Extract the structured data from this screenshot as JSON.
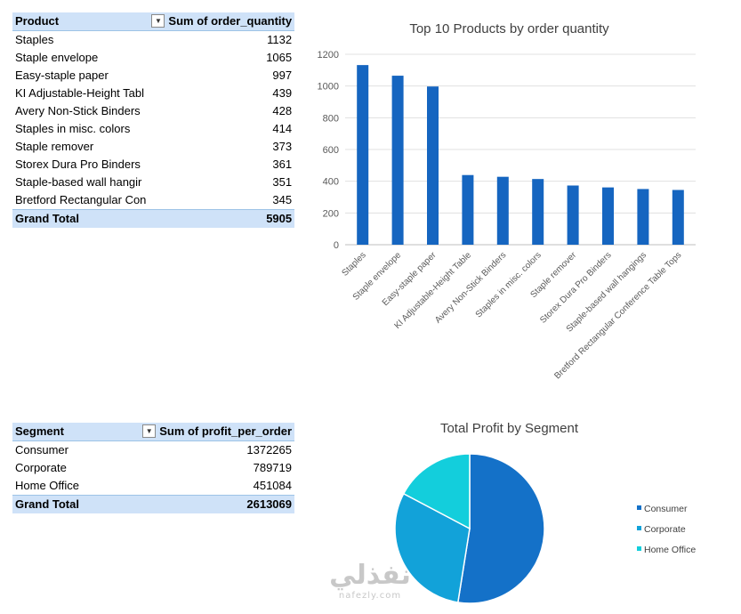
{
  "pivot_products": {
    "header_product": "Product",
    "header_value": "Sum of order_quantity",
    "rows": [
      {
        "label": "Staples",
        "value": "1132"
      },
      {
        "label": "Staple envelope",
        "value": "1065"
      },
      {
        "label": "Easy-staple paper",
        "value": "997"
      },
      {
        "label": "KI Adjustable-Height Tabl",
        "value": "439"
      },
      {
        "label": "Avery Non-Stick Binders",
        "value": "428"
      },
      {
        "label": "Staples in misc. colors",
        "value": "414"
      },
      {
        "label": "Staple remover",
        "value": "373"
      },
      {
        "label": "Storex Dura Pro Binders",
        "value": "361"
      },
      {
        "label": "Staple-based wall hangir",
        "value": "351"
      },
      {
        "label": "Bretford Rectangular Con",
        "value": "345"
      }
    ],
    "total_label": "Grand Total",
    "total_value": "5905"
  },
  "pivot_segments": {
    "header_segment": "Segment",
    "header_value": "Sum of profit_per_order",
    "rows": [
      {
        "label": "Consumer",
        "value": "1372265"
      },
      {
        "label": "Corporate",
        "value": "789719"
      },
      {
        "label": "Home Office",
        "value": "451084"
      }
    ],
    "total_label": "Grand Total",
    "total_value": "2613069"
  },
  "chart_data": [
    {
      "type": "bar",
      "title": "Top 10 Products by order quantity",
      "categories": [
        "Staples",
        "Staple envelope",
        "Easy-staple paper",
        "KI Adjustable-Height Table",
        "Avery Non-Stick Binders",
        "Staples in misc. colors",
        "Staple remover",
        "Storex Dura Pro Binders",
        "Staple-based wall hangings",
        "Bretford Rectangular Conference Table Tops"
      ],
      "values": [
        1132,
        1065,
        997,
        439,
        428,
        414,
        373,
        361,
        351,
        345
      ],
      "ylim": [
        0,
        1200
      ],
      "yticks": [
        0,
        200,
        400,
        600,
        800,
        1000,
        1200
      ],
      "grid": true,
      "color": "#1565c0"
    },
    {
      "type": "pie",
      "title": "Total Profit by Segment",
      "labels": [
        "Consumer",
        "Corporate",
        "Home Office"
      ],
      "values": [
        1372265,
        789719,
        451084
      ],
      "colors": [
        "#1471c8",
        "#12a2d9",
        "#13cedc"
      ],
      "legend": "right"
    }
  ],
  "watermark": {
    "arabic": "نفذلي",
    "latin": "nafezly.com"
  }
}
